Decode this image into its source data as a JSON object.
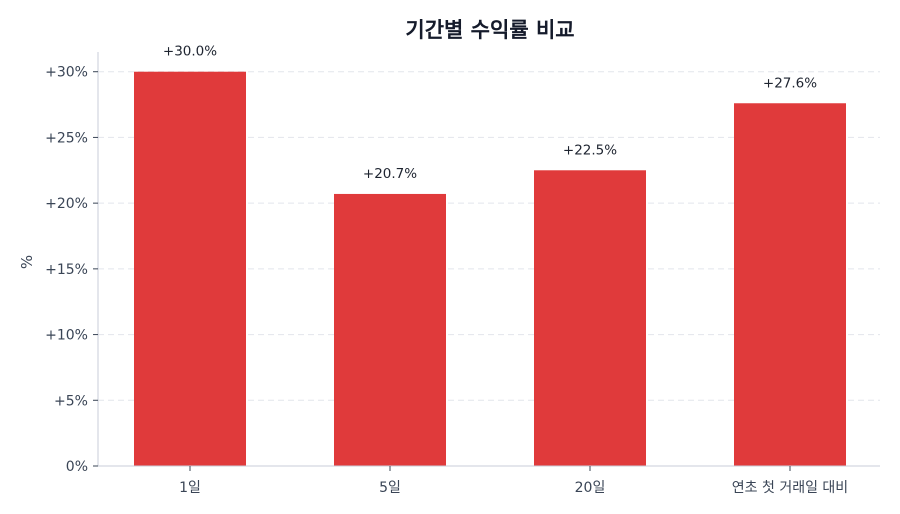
{
  "chart_data": {
    "type": "bar",
    "title": "기간별 수익률 비교",
    "xlabel": "",
    "ylabel": "%",
    "categories": [
      "1일",
      "5일",
      "20일",
      "연초 첫 거래일 대비"
    ],
    "values": [
      30.0,
      20.7,
      22.5,
      27.6
    ],
    "data_labels": [
      "+30.0%",
      "+20.7%",
      "+22.5%",
      "+27.6%"
    ],
    "yticks": [
      0,
      5,
      10,
      15,
      20,
      25,
      30
    ],
    "ytick_labels": [
      "0%",
      "+5%",
      "+10%",
      "+15%",
      "+20%",
      "+25%",
      "+30%"
    ],
    "ylim": [
      0,
      31.5
    ],
    "grid": "horizontal dashed",
    "bar_color": "#e03a3b"
  }
}
